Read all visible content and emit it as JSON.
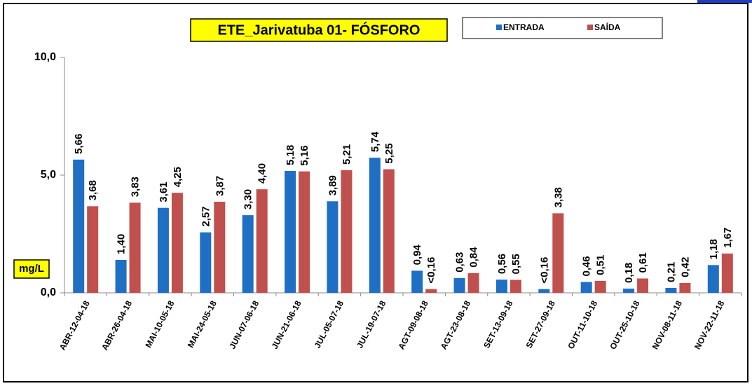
{
  "chart_data": {
    "type": "bar",
    "title": "ETE_Jarivatuba 01- FÓSFORO",
    "y_label": "mg/L",
    "categories": [
      "ABR-12-04-18",
      "ABR-26-04-18",
      "MAI-10-05-18",
      "MAI-24-05-18",
      "JUN-07-06-18",
      "JUN-21-06-18",
      "JUL-05-07-18",
      "JUL-19-07-18",
      "AGT-09-08-18",
      "AGT-23-08-18",
      "SET-13-09-18",
      "SET-27-09-18",
      "OUT-11-10-18",
      "OUT-25-10-18",
      "NOV-08-11-18",
      "NOV-22-11-18"
    ],
    "series": [
      {
        "name": "ENTRADA",
        "color": "#1f6fc5",
        "values": [
          5.66,
          1.4,
          3.61,
          2.57,
          3.3,
          5.18,
          3.89,
          5.74,
          0.94,
          0.63,
          0.56,
          0.16,
          0.46,
          0.18,
          0.21,
          1.18
        ],
        "value_labels": [
          "5,66",
          "1,40",
          "3,61",
          "2,57",
          "3,30",
          "5,18",
          "3,89",
          "5,74",
          "0,94",
          "0,63",
          "0,56",
          "<0,16",
          "0,46",
          "0,18",
          "0,21",
          "1,18"
        ]
      },
      {
        "name": "SAÍDA",
        "color": "#c0504d",
        "values": [
          3.68,
          3.83,
          4.25,
          3.87,
          4.4,
          5.16,
          5.21,
          5.25,
          0.16,
          0.84,
          0.55,
          3.38,
          0.51,
          0.61,
          0.42,
          1.67
        ],
        "value_labels": [
          "3,68",
          "3,83",
          "4,25",
          "3,87",
          "4,40",
          "5,16",
          "5,21",
          "5,25",
          "<0,16",
          "0,84",
          "0,55",
          "3,38",
          "0,51",
          "0,61",
          "0,42",
          "1,67"
        ]
      }
    ],
    "ylim": [
      0,
      10
    ],
    "yticks": [
      {
        "value": 0,
        "label": "0,0"
      },
      {
        "value": 5,
        "label": "5,0"
      },
      {
        "value": 10,
        "label": "10,0"
      }
    ],
    "legend": "top"
  }
}
